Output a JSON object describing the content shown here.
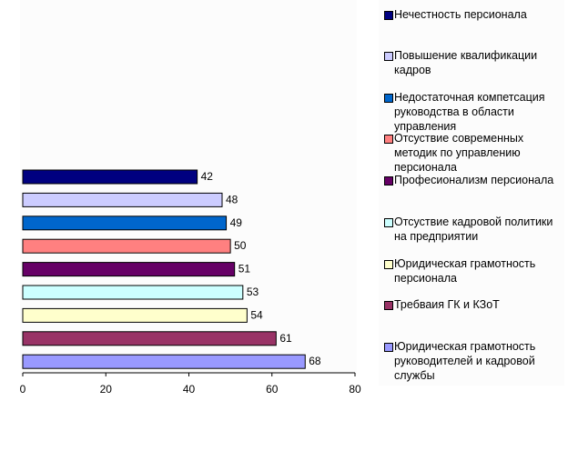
{
  "chart_data": {
    "type": "bar",
    "orientation": "horizontal",
    "title": "",
    "xlabel": "",
    "ylabel": "",
    "xlim": [
      0,
      80
    ],
    "xticks": [
      "0",
      "20",
      "40",
      "60",
      "80"
    ],
    "grid": false,
    "legend_position": "right",
    "series": [
      {
        "name": "Нечестность персионала",
        "value": 42,
        "color": "#000080"
      },
      {
        "name": "Повышение квалификации кадров",
        "value": 48,
        "color": "#CCCCFF"
      },
      {
        "name": "Недостаточная компетсация руководства в области управления",
        "value": 49,
        "color": "#0066CC"
      },
      {
        "name": "Отсуствие современных методик по управлению персионала",
        "value": 50,
        "color": "#FF8080"
      },
      {
        "name": "Професионализм персионала",
        "value": 51,
        "color": "#660066"
      },
      {
        "name": "Отсуствие кадровой политики на предприятии",
        "value": 53,
        "color": "#CCFFFF"
      },
      {
        "name": "Юридическая грамотность персионала",
        "value": 54,
        "color": "#FFFFCC"
      },
      {
        "name": "Требваия ГК и КЗоТ",
        "value": 61,
        "color": "#993366"
      },
      {
        "name": "Юридическая грамотность руководителей и кадровой службы",
        "value": 68,
        "color": "#9999FF"
      }
    ]
  }
}
